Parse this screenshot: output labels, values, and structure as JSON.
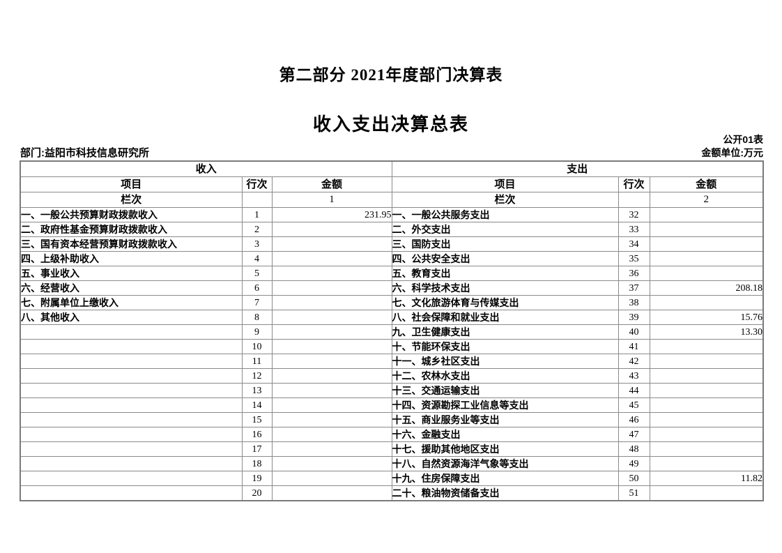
{
  "doc": {
    "part_title": "第二部分 2021年度部门决算表",
    "table_title": "收入支出决算总表",
    "table_code": "公开01表",
    "department": "部门:益阳市科技信息研究所",
    "unit_note": "金额单位:万元"
  },
  "table": {
    "income_header": "收入",
    "expense_header": "支出",
    "col_item": "项目",
    "col_line": "行次",
    "col_amount": "金额",
    "col_index_label": "栏次",
    "income_col_index": "1",
    "expense_col_index": "2",
    "income_rows": [
      {
        "label": "一、一般公共预算财政拨款收入",
        "line": "1",
        "amount": "231.95"
      },
      {
        "label": "二、政府性基金预算财政拨款收入",
        "line": "2",
        "amount": ""
      },
      {
        "label": "三、国有资本经营预算财政拨款收入",
        "line": "3",
        "amount": ""
      },
      {
        "label": "四、上级补助收入",
        "line": "4",
        "amount": ""
      },
      {
        "label": "五、事业收入",
        "line": "5",
        "amount": ""
      },
      {
        "label": "六、经营收入",
        "line": "6",
        "amount": ""
      },
      {
        "label": "七、附属单位上缴收入",
        "line": "7",
        "amount": ""
      },
      {
        "label": "八、其他收入",
        "line": "8",
        "amount": ""
      },
      {
        "label": "",
        "line": "9",
        "amount": ""
      },
      {
        "label": "",
        "line": "10",
        "amount": ""
      },
      {
        "label": "",
        "line": "11",
        "amount": ""
      },
      {
        "label": "",
        "line": "12",
        "amount": ""
      },
      {
        "label": "",
        "line": "13",
        "amount": ""
      },
      {
        "label": "",
        "line": "14",
        "amount": ""
      },
      {
        "label": "",
        "line": "15",
        "amount": ""
      },
      {
        "label": "",
        "line": "16",
        "amount": ""
      },
      {
        "label": "",
        "line": "17",
        "amount": ""
      },
      {
        "label": "",
        "line": "18",
        "amount": ""
      },
      {
        "label": "",
        "line": "19",
        "amount": ""
      },
      {
        "label": "",
        "line": "20",
        "amount": ""
      }
    ],
    "expense_rows": [
      {
        "label": "一、一般公共服务支出",
        "line": "32",
        "amount": ""
      },
      {
        "label": "二、外交支出",
        "line": "33",
        "amount": ""
      },
      {
        "label": "三、国防支出",
        "line": "34",
        "amount": ""
      },
      {
        "label": "四、公共安全支出",
        "line": "35",
        "amount": ""
      },
      {
        "label": "五、教育支出",
        "line": "36",
        "amount": ""
      },
      {
        "label": "六、科学技术支出",
        "line": "37",
        "amount": "208.18"
      },
      {
        "label": "七、文化旅游体育与传媒支出",
        "line": "38",
        "amount": ""
      },
      {
        "label": "八、社会保障和就业支出",
        "line": "39",
        "amount": "15.76"
      },
      {
        "label": "九、卫生健康支出",
        "line": "40",
        "amount": "13.30"
      },
      {
        "label": "十、节能环保支出",
        "line": "41",
        "amount": ""
      },
      {
        "label": "十一、城乡社区支出",
        "line": "42",
        "amount": ""
      },
      {
        "label": "十二、农林水支出",
        "line": "43",
        "amount": ""
      },
      {
        "label": "十三、交通运输支出",
        "line": "44",
        "amount": ""
      },
      {
        "label": "十四、资源勘探工业信息等支出",
        "line": "45",
        "amount": ""
      },
      {
        "label": "十五、商业服务业等支出",
        "line": "46",
        "amount": ""
      },
      {
        "label": "十六、金融支出",
        "line": "47",
        "amount": ""
      },
      {
        "label": "十七、援助其他地区支出",
        "line": "48",
        "amount": ""
      },
      {
        "label": "十八、自然资源海洋气象等支出",
        "line": "49",
        "amount": ""
      },
      {
        "label": "十九、住房保障支出",
        "line": "50",
        "amount": "11.82"
      },
      {
        "label": "二十、粮油物资储备支出",
        "line": "51",
        "amount": ""
      }
    ]
  }
}
